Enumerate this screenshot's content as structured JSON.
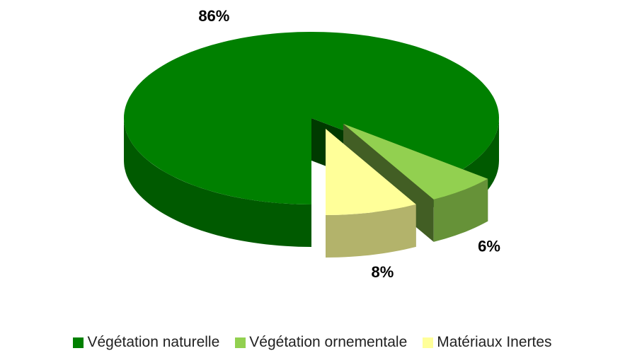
{
  "chart_data": {
    "type": "pie",
    "categories": [
      "Végétation naturelle",
      "Végétation ornementale",
      "Matériaux Inertes"
    ],
    "values": [
      86,
      6,
      8
    ],
    "value_labels": [
      "86%",
      "6%",
      "8%"
    ],
    "colors": [
      "#008000",
      "#92d050",
      "#ffff99"
    ],
    "legend": "bottom"
  }
}
